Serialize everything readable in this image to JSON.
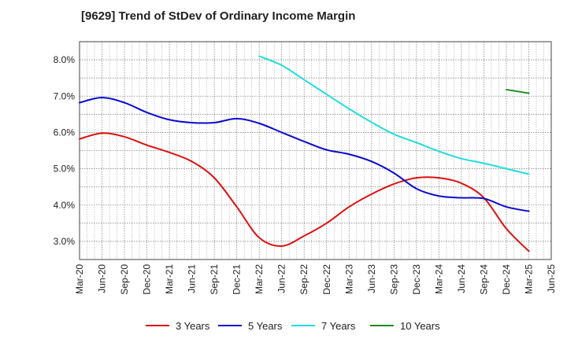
{
  "chart_data": {
    "type": "line",
    "title": "[9629]  Trend of StDev of Ordinary Income Margin",
    "xlabel": "",
    "ylabel": "",
    "x_ticks": [
      "Mar-20",
      "Jun-20",
      "Sep-20",
      "Dec-20",
      "Mar-21",
      "Jun-21",
      "Sep-21",
      "Dec-21",
      "Mar-22",
      "Jun-22",
      "Sep-22",
      "Dec-22",
      "Mar-23",
      "Jun-23",
      "Sep-23",
      "Dec-23",
      "Mar-24",
      "Jun-24",
      "Sep-24",
      "Dec-24",
      "Mar-25",
      "Jun-25"
    ],
    "y_ticks": [
      "3.0%",
      "4.0%",
      "5.0%",
      "6.0%",
      "7.0%",
      "8.0%"
    ],
    "y_tick_values": [
      3.0,
      4.0,
      5.0,
      6.0,
      7.0,
      8.0
    ],
    "ylim": [
      2.5,
      8.5
    ],
    "grid": true,
    "legend_position": "bottom",
    "series": [
      {
        "name": "3 Years",
        "color": "#dd1111",
        "x": [
          "Mar-20",
          "Jun-20",
          "Sep-20",
          "Dec-20",
          "Mar-21",
          "Jun-21",
          "Sep-21",
          "Dec-21",
          "Mar-22",
          "Jun-22",
          "Sep-22",
          "Dec-22",
          "Mar-23",
          "Jun-23",
          "Sep-23",
          "Dec-23",
          "Mar-24",
          "Jun-24",
          "Sep-24",
          "Dec-24",
          "Mar-25"
        ],
        "values": [
          5.82,
          5.98,
          5.88,
          5.65,
          5.45,
          5.2,
          4.75,
          3.95,
          3.1,
          2.87,
          3.15,
          3.5,
          3.95,
          4.3,
          4.58,
          4.75,
          4.75,
          4.6,
          4.2,
          3.35,
          2.73
        ]
      },
      {
        "name": "5 Years",
        "color": "#0a0acc",
        "x": [
          "Mar-20",
          "Jun-20",
          "Sep-20",
          "Dec-20",
          "Mar-21",
          "Jun-21",
          "Sep-21",
          "Dec-21",
          "Mar-22",
          "Jun-22",
          "Sep-22",
          "Dec-22",
          "Mar-23",
          "Jun-23",
          "Sep-23",
          "Dec-23",
          "Mar-24",
          "Jun-24",
          "Sep-24",
          "Dec-24",
          "Mar-25"
        ],
        "values": [
          6.82,
          6.96,
          6.82,
          6.55,
          6.35,
          6.27,
          6.27,
          6.38,
          6.25,
          6.0,
          5.75,
          5.52,
          5.4,
          5.2,
          4.88,
          4.45,
          4.25,
          4.2,
          4.18,
          3.95,
          3.83
        ]
      },
      {
        "name": "7 Years",
        "color": "#22dddd",
        "x": [
          "Mar-22",
          "Jun-22",
          "Sep-22",
          "Dec-22",
          "Mar-23",
          "Jun-23",
          "Sep-23",
          "Dec-23",
          "Mar-24",
          "Jun-24",
          "Sep-24",
          "Dec-24",
          "Mar-25"
        ],
        "values": [
          8.1,
          7.85,
          7.45,
          7.05,
          6.65,
          6.28,
          5.95,
          5.72,
          5.48,
          5.28,
          5.15,
          5.0,
          4.85
        ]
      },
      {
        "name": "10 Years",
        "color": "#228822",
        "x": [
          "Dec-24",
          "Mar-25"
        ],
        "values": [
          7.18,
          7.08
        ]
      }
    ]
  }
}
